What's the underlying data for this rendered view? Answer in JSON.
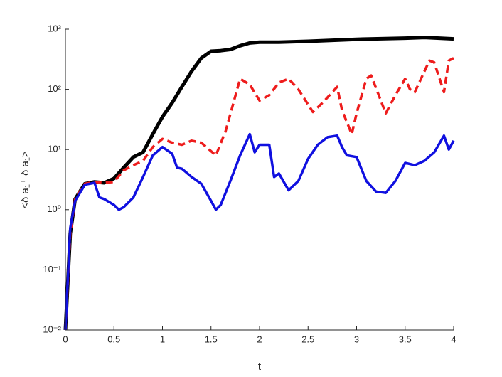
{
  "chart_data": {
    "type": "line",
    "log_y": true,
    "xlabel": "t",
    "ylabel": "<δ a₁⁺ δ a₁>",
    "xlim": [
      0,
      4
    ],
    "xticks": [
      0,
      0.5,
      1,
      1.5,
      2,
      2.5,
      3,
      3.5,
      4
    ],
    "ylim": [
      0.01,
      1000
    ],
    "yticks": [
      {
        "value": 0.01,
        "label": "10⁻²"
      },
      {
        "value": 0.1,
        "label": "10⁻¹"
      },
      {
        "value": 1,
        "label": "10⁰"
      },
      {
        "value": 10,
        "label": "10¹"
      },
      {
        "value": 100,
        "label": "10²"
      },
      {
        "value": 1000,
        "label": "10³"
      }
    ],
    "series": [
      {
        "name": "black",
        "color": "#000000",
        "width": 5,
        "dash": "",
        "x": [
          0,
          0.05,
          0.1,
          0.2,
          0.3,
          0.4,
          0.5,
          0.6,
          0.7,
          0.8,
          0.9,
          1.0,
          1.1,
          1.2,
          1.3,
          1.4,
          1.5,
          1.6,
          1.7,
          1.8,
          1.9,
          2.0,
          2.2,
          2.5,
          3.0,
          3.5,
          3.7,
          4.0
        ],
        "values": [
          0.01,
          0.4,
          1.5,
          2.7,
          2.9,
          2.8,
          3.3,
          5,
          7.5,
          9,
          18,
          35,
          60,
          110,
          200,
          330,
          430,
          440,
          460,
          530,
          590,
          610,
          610,
          630,
          680,
          710,
          730,
          690
        ]
      },
      {
        "name": "red",
        "color": "#ee1c1c",
        "width": 3.5,
        "dash": "10 6",
        "x": [
          0,
          0.05,
          0.1,
          0.2,
          0.3,
          0.4,
          0.5,
          0.6,
          0.7,
          0.8,
          0.9,
          1.0,
          1.1,
          1.2,
          1.3,
          1.4,
          1.55,
          1.65,
          1.8,
          1.9,
          2.0,
          2.1,
          2.2,
          2.3,
          2.4,
          2.55,
          2.65,
          2.8,
          2.85,
          2.95,
          3.0,
          3.1,
          3.15,
          3.3,
          3.4,
          3.5,
          3.55,
          3.6,
          3.75,
          3.8,
          3.9,
          3.95,
          4.0
        ],
        "values": [
          0.01,
          0.4,
          1.5,
          2.7,
          2.9,
          2.8,
          2.9,
          4.5,
          5.5,
          6.5,
          11,
          15,
          13,
          12,
          14,
          13,
          8,
          20,
          150,
          120,
          65,
          80,
          130,
          150,
          100,
          42,
          60,
          110,
          45,
          18,
          40,
          150,
          170,
          40,
          80,
          150,
          100,
          90,
          300,
          280,
          90,
          300,
          330
        ]
      },
      {
        "name": "blue",
        "color": "#1010e0",
        "width": 3.5,
        "dash": "",
        "x": [
          0,
          0.05,
          0.1,
          0.2,
          0.3,
          0.35,
          0.4,
          0.5,
          0.55,
          0.6,
          0.7,
          0.8,
          0.9,
          1.0,
          1.1,
          1.15,
          1.2,
          1.3,
          1.4,
          1.5,
          1.55,
          1.6,
          1.7,
          1.8,
          1.9,
          1.95,
          2.0,
          2.1,
          2.15,
          2.2,
          2.3,
          2.4,
          2.5,
          2.6,
          2.7,
          2.8,
          2.85,
          2.9,
          3.0,
          3.1,
          3.2,
          3.3,
          3.4,
          3.5,
          3.6,
          3.7,
          3.8,
          3.9,
          3.95,
          4.0
        ],
        "values": [
          0.01,
          0.5,
          1.4,
          2.6,
          2.8,
          1.6,
          1.5,
          1.2,
          1.0,
          1.1,
          1.6,
          3.5,
          8,
          11,
          8.5,
          5,
          4.8,
          3.5,
          2.7,
          1.4,
          1.0,
          1.2,
          3,
          8,
          18,
          9,
          12,
          12,
          3.5,
          4,
          2.1,
          3,
          7,
          12,
          16,
          17,
          11,
          8,
          7.5,
          3,
          2,
          1.9,
          3,
          6,
          5.5,
          6.5,
          9,
          17,
          10,
          14
        ]
      }
    ]
  }
}
